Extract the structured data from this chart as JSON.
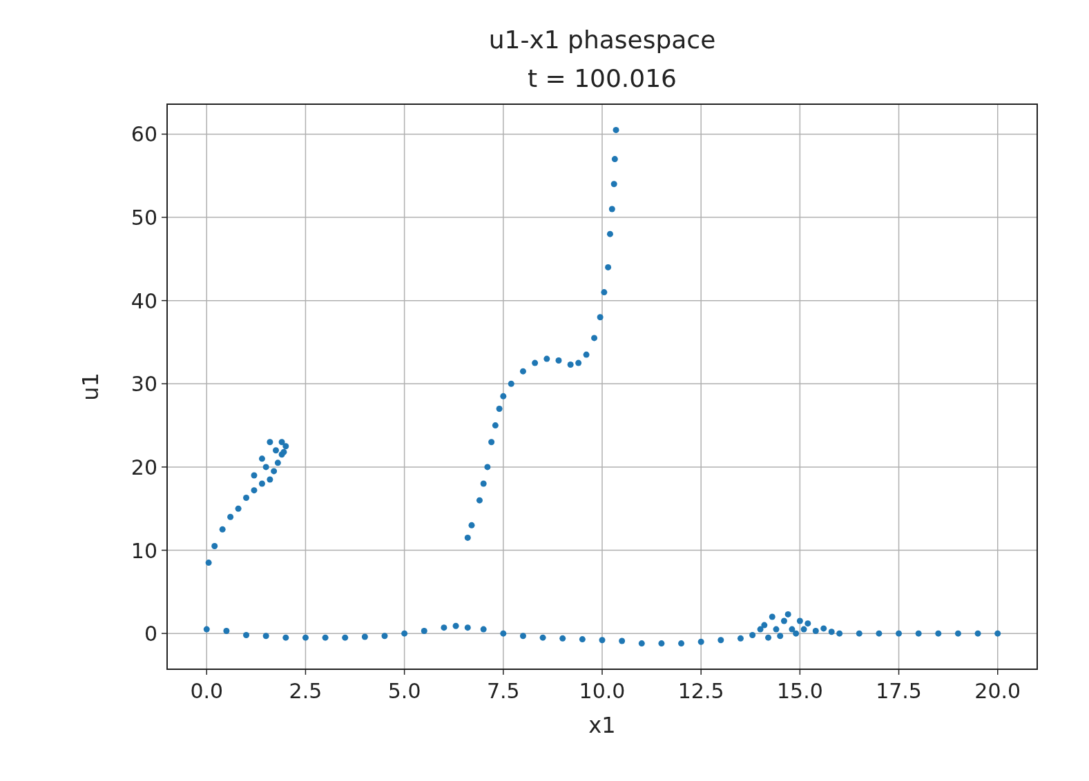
{
  "chart_data": {
    "type": "scatter",
    "title": "u1-x1 phasespace",
    "subtitle": "t = 100.016",
    "xlabel": "x1",
    "ylabel": "u1",
    "xlim": [
      -1.0,
      21.0
    ],
    "ylim": [
      -4.3,
      63.6
    ],
    "xticks": [
      {
        "value": 0,
        "label": "0.0"
      },
      {
        "value": 2.5,
        "label": "2.5"
      },
      {
        "value": 5,
        "label": "5.0"
      },
      {
        "value": 7.5,
        "label": "7.5"
      },
      {
        "value": 10,
        "label": "10.0"
      },
      {
        "value": 12.5,
        "label": "12.5"
      },
      {
        "value": 15,
        "label": "15.0"
      },
      {
        "value": 17.5,
        "label": "17.5"
      },
      {
        "value": 20,
        "label": "20.0"
      }
    ],
    "yticks": [
      0,
      10,
      20,
      30,
      40,
      50,
      60
    ],
    "grid": true,
    "marker": "circle",
    "series": [
      {
        "color": "#1f77b4",
        "x": [
          0,
          0.5,
          1,
          1.5,
          2,
          2.5,
          3,
          3.5,
          4,
          4.5,
          5,
          5.5,
          6,
          6.3,
          6.6,
          7,
          7.5,
          8,
          8.5,
          9,
          9.5,
          10,
          10.5,
          11,
          11.5,
          12,
          12.5,
          13,
          13.5,
          13.8,
          14,
          14.1,
          14.2,
          14.3,
          14.4,
          14.5,
          14.6,
          14.7,
          14.8,
          14.9,
          15,
          15.1,
          15.2,
          15.4,
          15.6,
          15.8,
          16,
          16.5,
          17,
          17.5,
          18,
          18.5,
          19,
          19.5,
          20
        ],
        "values": [
          0.5,
          0.3,
          -0.2,
          -0.3,
          -0.5,
          -0.5,
          -0.5,
          -0.5,
          -0.4,
          -0.3,
          0,
          0.3,
          0.7,
          0.9,
          0.7,
          0.5,
          0,
          -0.3,
          -0.5,
          -0.6,
          -0.7,
          -0.8,
          -0.9,
          -1.2,
          -1.2,
          -1.2,
          -1.0,
          -0.8,
          -0.6,
          -0.2,
          0.5,
          1,
          -0.5,
          2,
          0.5,
          -0.3,
          1.5,
          2.3,
          0.5,
          0,
          1.5,
          0.5,
          1.2,
          0.3,
          0.6,
          0.2,
          0,
          0,
          0,
          0,
          0,
          0,
          0,
          0,
          0
        ]
      },
      {
        "color": "#1f77b4",
        "x": [
          0.05,
          0.2,
          0.4,
          0.6,
          0.8,
          1.0,
          1.2,
          1.4,
          1.6,
          1.7,
          1.8,
          1.9,
          2.0,
          1.9,
          1.6,
          1.4,
          1.2,
          1.5,
          1.75,
          1.95,
          6.6,
          6.7,
          6.9,
          7.0,
          7.1,
          7.2,
          7.3,
          7.4,
          7.5,
          7.7,
          8.0,
          8.3,
          8.6,
          8.9,
          9.2,
          9.4,
          9.6,
          9.8,
          9.95,
          10.05,
          10.15,
          10.2,
          10.25,
          10.3,
          10.32,
          10.35
        ],
        "values": [
          8.5,
          10.5,
          12.5,
          14,
          15,
          16.3,
          17.2,
          18,
          18.5,
          19.5,
          20.5,
          21.5,
          22.5,
          23,
          23,
          21,
          19,
          20,
          22,
          21.8,
          11.5,
          13,
          16,
          18,
          20,
          23,
          25,
          27,
          28.5,
          30,
          31.5,
          32.5,
          33,
          32.8,
          32.3,
          32.5,
          33.5,
          35.5,
          38,
          41,
          44,
          48,
          51,
          54,
          57,
          60.5
        ]
      }
    ]
  }
}
